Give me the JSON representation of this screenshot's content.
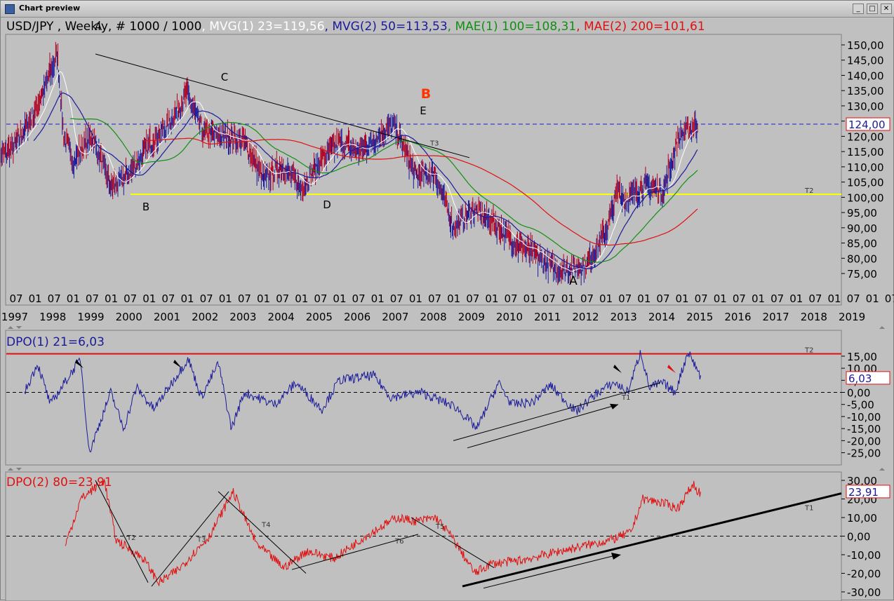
{
  "window": {
    "title": "Chart preview",
    "min_label": "_",
    "max_label": "□",
    "close_label": "✕"
  },
  "header": {
    "instrument": "USD/JPY , Weekly, # 1000 / 1000",
    "mvg1": ", MVG(1) 23=119,56",
    "mvg2": ", MVG(2) 50=113,53",
    "mae1": ", MAE(1) 100=108,31",
    "mae2": ", MAE(2) 200=101,61"
  },
  "colors": {
    "bg": "#c0c0c0",
    "grid_text": "#000000",
    "mvg1": "#ffffff",
    "mvg2": "#1a1a9a",
    "mae1": "#109010",
    "mae2": "#e01010",
    "support": "#ffff00",
    "dpo1": "#1a1a9a",
    "dpo2": "#e01010",
    "dashed": "#1a1acc",
    "wave_red": "#ff3300"
  },
  "price_panel": {
    "y_ticks": [
      "150,00",
      "145,00",
      "140,00",
      "135,00",
      "130,00",
      "125,00",
      "120,00",
      "115,00",
      "110,00",
      "105,00",
      "100,00",
      "95,00",
      "90,00",
      "85,00",
      "80,00",
      "75,00"
    ],
    "last_price": "124,00",
    "support_label": "T2",
    "trend_label": "T3",
    "wave_labels": {
      "A1": "A",
      "B": "B",
      "C": "C",
      "D": "D",
      "E": "E",
      "A2": "A",
      "Bbig": "B"
    }
  },
  "time_axis": {
    "months": [
      "07",
      "01",
      "07",
      "01",
      "07",
      "01",
      "07",
      "01",
      "07",
      "01",
      "07",
      "01",
      "07",
      "01",
      "07",
      "01",
      "07",
      "01",
      "07",
      "01",
      "07",
      "01",
      "07",
      "01",
      "07",
      "01",
      "07",
      "01",
      "07",
      "01",
      "07",
      "01",
      "07",
      "01",
      "07",
      "01",
      "07",
      "01",
      "07",
      "01",
      "07",
      "01",
      "07",
      "01",
      "07",
      "01",
      "07"
    ],
    "years": [
      "1997",
      "1998",
      "1999",
      "2000",
      "2001",
      "2002",
      "2003",
      "2004",
      "2005",
      "2006",
      "2007",
      "2008",
      "2009",
      "2010",
      "2011",
      "2012",
      "2013",
      "2014",
      "2015",
      "2016",
      "2017",
      "2018",
      "2019"
    ]
  },
  "dpo1_panel": {
    "title": "DPO(1) 21=6,03",
    "last_value": "6,03",
    "y_ticks": [
      "15,00",
      "10,00",
      "5,00",
      "0,00",
      "-5,00",
      "-10,00",
      "-15,00",
      "-20,00",
      "-25,00"
    ],
    "line_label": "T2",
    "trend_label": "T1"
  },
  "dpo2_panel": {
    "title": "DPO(2) 80=23,91",
    "last_value": "23,91",
    "y_ticks": [
      "30,00",
      "20,00",
      "10,00",
      "0,00",
      "-10,00",
      "-20,00",
      "-30,00"
    ],
    "labels": {
      "T1": "T1",
      "T2": "T2",
      "T3": "T3",
      "T4": "T4",
      "T5": "T5",
      "T6": "T6"
    }
  },
  "chart_data": [
    {
      "type": "candlestick",
      "title": "USD/JPY , Weekly, # 1000 / 1000",
      "ylim": [
        72,
        153
      ],
      "series": [
        {
          "name": "MVG(1) 23",
          "last": 119.56
        },
        {
          "name": "MVG(2) 50",
          "last": 113.53
        },
        {
          "name": "MAE(1) 100",
          "last": 108.31
        },
        {
          "name": "MAE(2) 200",
          "last": 101.61
        }
      ],
      "close_anchors": [
        [
          "1997-01",
          113
        ],
        [
          "1997-06",
          116
        ],
        [
          "1998-01",
          128
        ],
        [
          "1998-08",
          147
        ],
        [
          "1998-10",
          120
        ],
        [
          "1999-01",
          112
        ],
        [
          "1999-07",
          120
        ],
        [
          "2000-01",
          103
        ],
        [
          "2000-06",
          107
        ],
        [
          "2001-01",
          117
        ],
        [
          "2001-07",
          124
        ],
        [
          "2002-01",
          134
        ],
        [
          "2002-06",
          121
        ],
        [
          "2003-01",
          120
        ],
        [
          "2003-07",
          118
        ],
        [
          "2004-01",
          106
        ],
        [
          "2004-07",
          110
        ],
        [
          "2005-01",
          103
        ],
        [
          "2005-07",
          112
        ],
        [
          "2006-01",
          118
        ],
        [
          "2006-07",
          115
        ],
        [
          "2007-06",
          124
        ],
        [
          "2008-01",
          107
        ],
        [
          "2008-07",
          108
        ],
        [
          "2009-01",
          90
        ],
        [
          "2009-07",
          96
        ],
        [
          "2010-01",
          92
        ],
        [
          "2010-07",
          86
        ],
        [
          "2011-01",
          82
        ],
        [
          "2011-10",
          76
        ],
        [
          "2012-07",
          78
        ],
        [
          "2013-01",
          89
        ],
        [
          "2013-05",
          103
        ],
        [
          "2013-07",
          99
        ],
        [
          "2014-01",
          104
        ],
        [
          "2014-07",
          102
        ],
        [
          "2014-12",
          120
        ],
        [
          "2015-06",
          124
        ]
      ]
    },
    {
      "type": "line",
      "title": "DPO(1) 21=6,03",
      "ylim": [
        -28,
        19
      ],
      "series": [
        {
          "name": "DPO(1) 21",
          "last": 6.03
        }
      ],
      "hline": 16
    },
    {
      "type": "line",
      "title": "DPO(2) 80=23,91",
      "ylim": [
        -30,
        32
      ],
      "series": [
        {
          "name": "DPO(2) 80",
          "last": 23.91
        }
      ]
    }
  ]
}
